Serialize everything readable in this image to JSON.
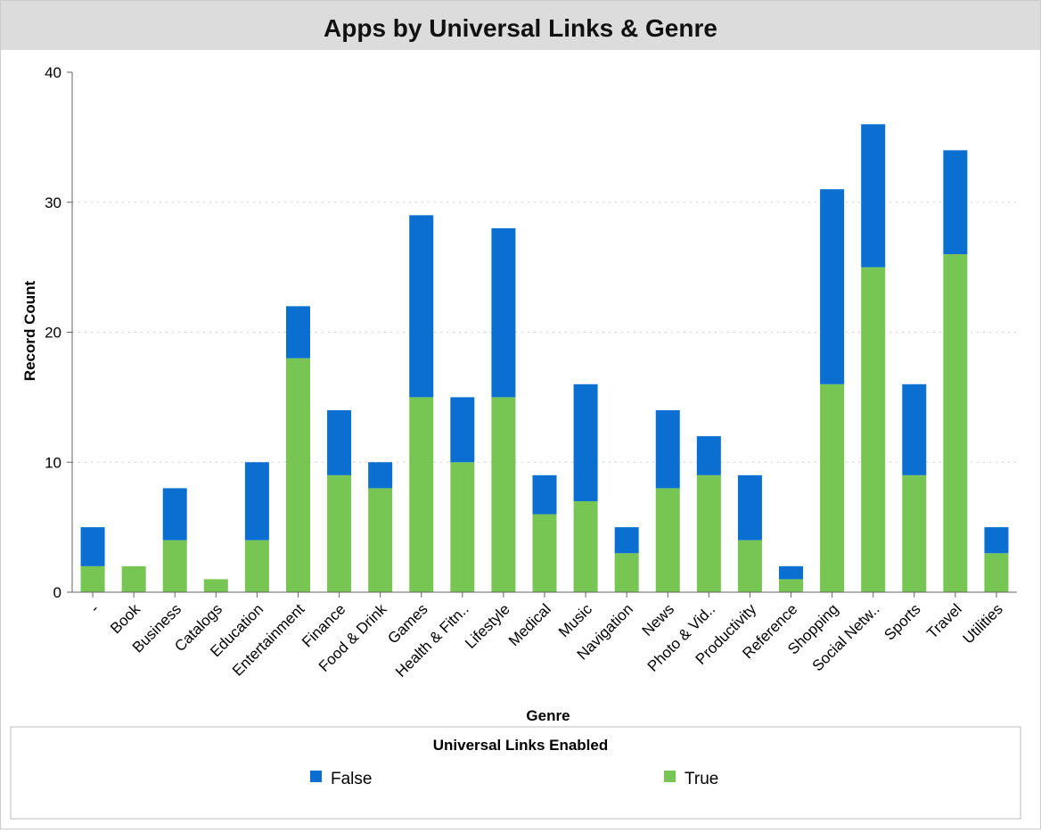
{
  "chart_data": {
    "type": "bar",
    "stacked": true,
    "title": "Apps by Universal Links & Genre",
    "xlabel": "Genre",
    "ylabel": "Record Count",
    "ylim": [
      0,
      40
    ],
    "yticks": [
      0,
      10,
      20,
      30,
      40
    ],
    "grid": true,
    "categories": [
      "-",
      "Book",
      "Business",
      "Catalogs",
      "Education",
      "Entertainment",
      "Finance",
      "Food & Drink",
      "Games",
      "Health & Fitn..",
      "Lifestyle",
      "Medical",
      "Music",
      "Navigation",
      "News",
      "Photo & Vid..",
      "Productivity",
      "Reference",
      "Shopping",
      "Social Netw..",
      "Sports",
      "Travel",
      "Utilities"
    ],
    "series": [
      {
        "name": "True",
        "color": "#77c653",
        "values": [
          2,
          2,
          4,
          1,
          4,
          18,
          9,
          8,
          15,
          10,
          15,
          6,
          7,
          3,
          8,
          9,
          4,
          1,
          16,
          25,
          9,
          26,
          3
        ]
      },
      {
        "name": "False",
        "color": "#0a6fd0",
        "values": [
          3,
          0,
          4,
          0,
          6,
          4,
          5,
          2,
          14,
          5,
          13,
          3,
          9,
          2,
          6,
          3,
          5,
          1,
          15,
          11,
          7,
          8,
          2
        ]
      }
    ],
    "legend": {
      "title": "Universal Links Enabled",
      "placement": "bottom",
      "entries": [
        "False",
        "True"
      ]
    }
  }
}
